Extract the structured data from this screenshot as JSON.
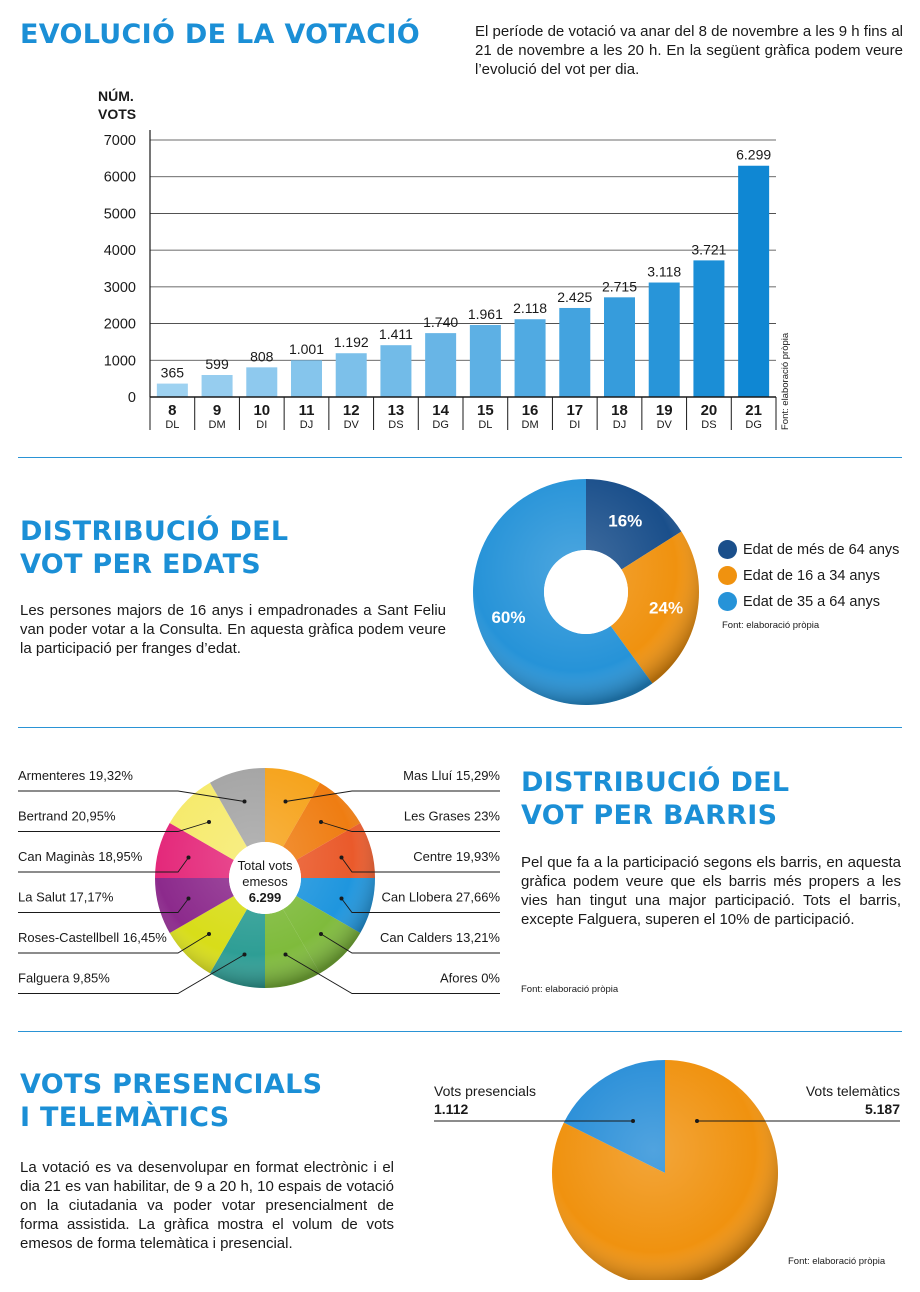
{
  "section1": {
    "title": "EVOLUCIÓ DE LA VOTACIÓ",
    "intro": "El període de votació va anar del 8 de novembre a les 9 h fins al 21 de novembre a les 20 h. En la següent gràfica podem veure l’evolució del vot per dia.",
    "source": "Font: elaboració pròpia"
  },
  "section2": {
    "title_line1": "DISTRIBUCIÓ DEL",
    "title_line2": "VOT PER EDATS",
    "text": "Les persones majors de 16 anys i empadronades a Sant Feliu van poder votar a la Consulta. En aquesta gràfica podem veure la participació per franges d’edat.",
    "source": "Font: elaboració pròpia"
  },
  "section3": {
    "title_line1": "DISTRIBUCIÓ DEL",
    "title_line2": "VOT PER BARRIS",
    "text": "Pel que fa a la participació segons els barris, en aquesta gràfica podem veure que els barris més propers a les vies han tingut una major participació. Tots el barris, excepte Falguera, superen el 10% de participació.",
    "source": "Font: elaboració pròpia",
    "center_line1": "Total vots",
    "center_line2": "emesos",
    "center_total": "6.299"
  },
  "section4": {
    "title_line1": "VOTS PRESENCIALS",
    "title_line2": "I TELEMÀTICS",
    "text": "La votació es va desenvolupar en format electrònic i el dia 21 es van habilitar, de 9 a 20 h, 10 espais de votació on la ciutadania va poder votar presencialment de forma assistida. La gràfica mostra el volum de vots emesos de forma telemàtica i presencial.",
    "source": "Font: elaboració pròpia"
  },
  "chart_data": [
    {
      "type": "bar",
      "ylabel": "NÚM. VOTS",
      "ylim": [
        0,
        7000
      ],
      "yticks": [
        "0",
        "1000",
        "2000",
        "3000",
        "4000",
        "5000",
        "6000",
        "7000"
      ],
      "grid": true,
      "categories": [
        "8",
        "9",
        "10",
        "11",
        "12",
        "13",
        "14",
        "15",
        "16",
        "17",
        "18",
        "19",
        "20",
        "21"
      ],
      "weekdays": [
        "DL",
        "DM",
        "DI",
        "DJ",
        "DV",
        "DS",
        "DG",
        "DL",
        "DM",
        "DI",
        "DJ",
        "DV",
        "DS",
        "DG"
      ],
      "values": [
        365,
        599,
        808,
        1001,
        1192,
        1411,
        1740,
        1961,
        2118,
        2425,
        2715,
        3118,
        3721,
        6299
      ],
      "value_labels": [
        "365",
        "599",
        "808",
        "1.001",
        "1.192",
        "1.411",
        "1.740",
        "1.961",
        "2.118",
        "2.425",
        "2.715",
        "3.118",
        "3.721",
        "6.299"
      ],
      "colors": [
        "#9ed2f1",
        "#96cdef",
        "#8ec9ee",
        "#85c5ec",
        "#7cc0ea",
        "#72bbe8",
        "#68b5e6",
        "#5db0e4",
        "#50aae2",
        "#43a3df",
        "#369cdc",
        "#2895d9",
        "#1b8ed6",
        "#0f87d3"
      ]
    },
    {
      "type": "pie",
      "legend": "right",
      "labels": [
        "Edat de més de 64 anys",
        "Edat de 16 a 34 anys",
        "Edat de 35 a 64 anys"
      ],
      "values": [
        16,
        24,
        60
      ],
      "value_labels": [
        "16%",
        "24%",
        "60%"
      ],
      "colors": [
        "#1a4f8b",
        "#f0920f",
        "#2693d8"
      ]
    },
    {
      "type": "pie",
      "labels": [
        "Mas Lluí 15,29%",
        "Les Grases 23%",
        "Centre 19,93%",
        "Can Llobera 27,66%",
        "Can Calders 13,21%",
        "Afores 0%",
        "Falguera 9,85%",
        "Roses-Castellbell 16,45%",
        "La Salut 17,17%",
        "Can Maginàs 18,95%",
        "Bertrand 20,95%",
        "Armenteres 19,32%"
      ],
      "values": [
        15.29,
        23,
        19.93,
        27.66,
        13.21,
        0,
        9.85,
        16.45,
        17.17,
        18.95,
        20.95,
        19.32
      ],
      "colors": [
        "#f6a31b",
        "#ef7d12",
        "#ea5a2b",
        "#1f96de",
        "#7fbb3c",
        "#7fbb3c",
        "#2e9e95",
        "#d8dd19",
        "#8c2a8c",
        "#e4287a",
        "#f6ea6a",
        "#a4a4a4"
      ]
    },
    {
      "type": "pie",
      "labels": [
        "Vots presencials",
        "Vots telemàtics"
      ],
      "values": [
        1112,
        5187
      ],
      "value_labels": [
        "1.112",
        "5.187"
      ],
      "colors": [
        "#2a8fd8",
        "#f0920f"
      ]
    }
  ]
}
